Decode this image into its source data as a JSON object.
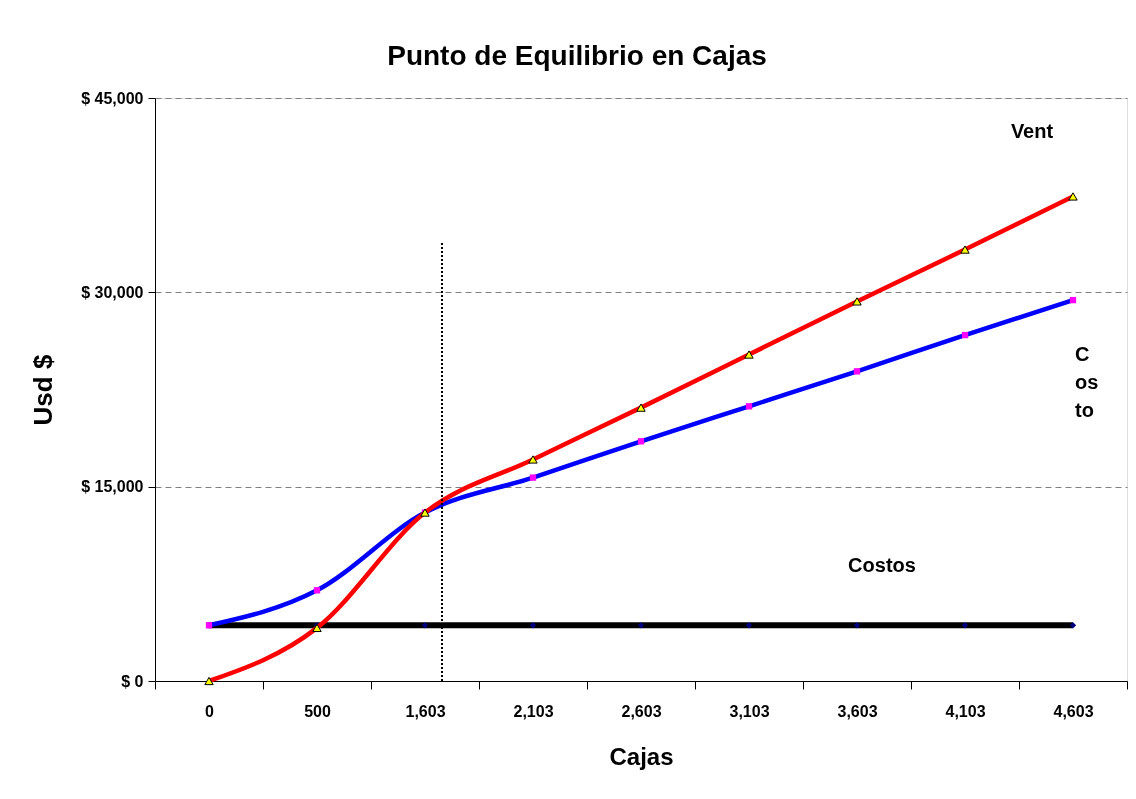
{
  "chart_data": {
    "type": "line",
    "title": "Punto de Equilibrio en Cajas",
    "xlabel": "Cajas",
    "ylabel": "Usd $",
    "categories": [
      "0",
      "500",
      "1,603",
      "2,103",
      "2,603",
      "3,103",
      "3,603",
      "4,103",
      "4,603"
    ],
    "series": [
      {
        "name": "Vent",
        "color": "#ff0000",
        "marker": "triangle",
        "colors": [
          "#ffff00",
          "#ffff00",
          "#ffff00",
          "#ffff00",
          "#ffff00",
          "#ffff00",
          "#ffff00",
          "#ffff00",
          "#ffff00"
        ],
        "values": [
          0,
          4100,
          13000,
          17100,
          21100,
          25200,
          29300,
          33300,
          37400
        ]
      },
      {
        "name": "Costo",
        "color": "#0000ff",
        "marker": "square",
        "colors": [
          "#ff00ff",
          "#ff00ff",
          "#ff00ff",
          "#ff00ff",
          "#ff00ff",
          "#ff00ff",
          "#ff00ff",
          "#ff00ff",
          "#ff00ff"
        ],
        "values": [
          4300,
          7000,
          13000,
          15700,
          18500,
          21200,
          23900,
          26700,
          29400
        ]
      },
      {
        "name": "Costos",
        "color": "#000000",
        "marker": "diamond",
        "colors": [
          "#000080",
          "#000080",
          "#000080",
          "#000080",
          "#000080",
          "#000080",
          "#000080",
          "#000080",
          "#000080"
        ],
        "values": [
          4300,
          4300,
          4300,
          4300,
          4300,
          4300,
          4300,
          4300,
          4300
        ]
      }
    ],
    "ylim": [
      0,
      45000
    ],
    "yticks": [
      {
        "value": 0,
        "label": "$ 0"
      },
      {
        "value": 15000,
        "label": "$ 15,000"
      },
      {
        "value": 30000,
        "label": "$ 30,000"
      },
      {
        "value": 45000,
        "label": "$ 45,000"
      }
    ],
    "grid": "y",
    "line_style": "solid",
    "ref_lines": [
      {
        "axis": "x",
        "value": "1,603",
        "line_style": "dotted",
        "color": "#000000"
      }
    ]
  }
}
